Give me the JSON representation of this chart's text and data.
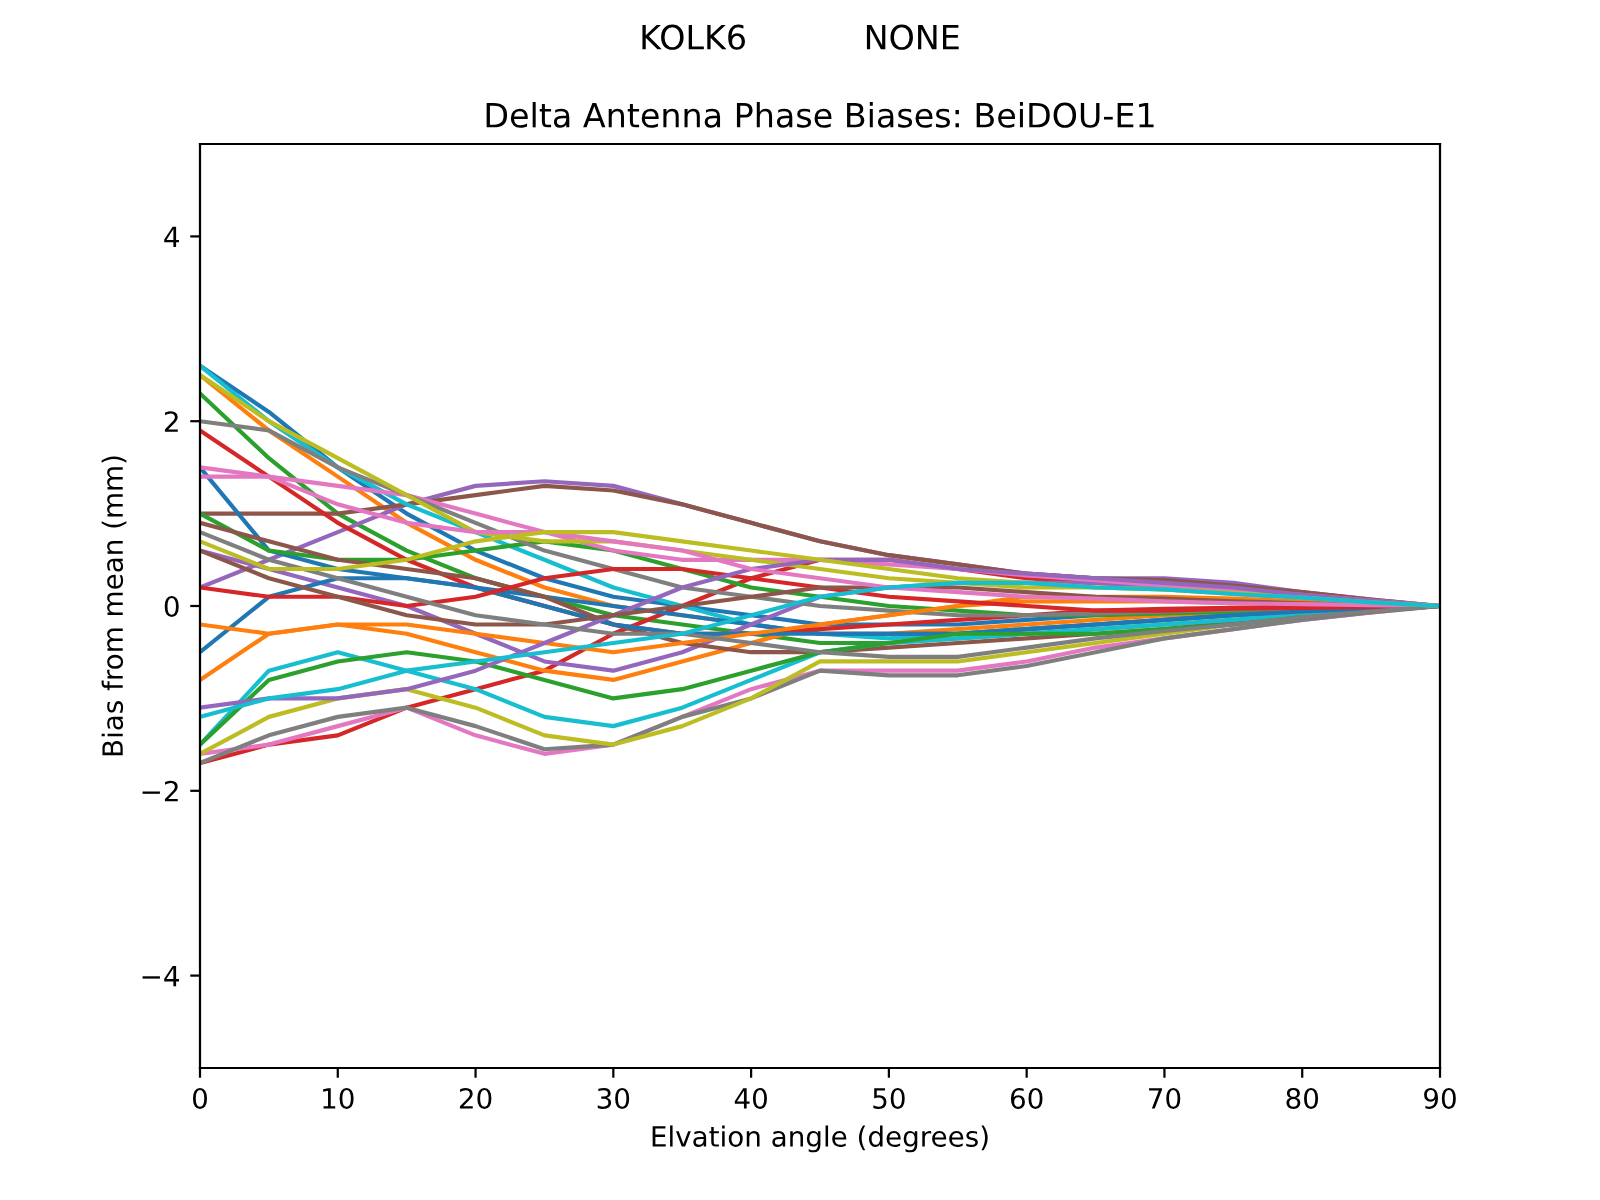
{
  "chart_data": {
    "type": "line",
    "title": "Delta Antenna Phase Biases: BeiDOU-E1",
    "subtitle": "KOLK6           NONE",
    "xlabel": "Elvation angle (degrees)",
    "ylabel": "Bias from mean (mm)",
    "x": [
      0,
      5,
      10,
      15,
      20,
      25,
      30,
      35,
      40,
      45,
      50,
      55,
      60,
      65,
      70,
      75,
      80,
      85,
      90
    ],
    "xlim": [
      0,
      90
    ],
    "ylim": [
      -5,
      5
    ],
    "xticks": [
      0,
      10,
      20,
      30,
      40,
      50,
      60,
      70,
      80,
      90
    ],
    "yticks": [
      {
        "value": -4,
        "label": "−4"
      },
      {
        "value": -2,
        "label": "−2"
      },
      0,
      2,
      4
    ],
    "grid": false,
    "legend": false,
    "marker": "none",
    "line_style": "solid",
    "series": [
      {
        "color": "#1f77b4",
        "values": [
          2.6,
          2.1,
          1.5,
          1.0,
          0.6,
          0.3,
          0.1,
          0.0,
          -0.1,
          -0.2,
          -0.2,
          -0.2,
          -0.15,
          -0.1,
          -0.1,
          -0.05,
          -0.05,
          -0.02,
          0
        ]
      },
      {
        "color": "#ff7f0e",
        "values": [
          2.5,
          1.9,
          1.4,
          0.9,
          0.5,
          0.2,
          0.0,
          -0.1,
          -0.2,
          -0.3,
          -0.3,
          -0.25,
          -0.2,
          -0.15,
          -0.1,
          -0.08,
          null,
          null,
          null
        ]
      },
      {
        "color": "#2ca02c",
        "values": [
          2.3,
          1.6,
          1.0,
          0.6,
          0.3,
          0.1,
          -0.1,
          -0.2,
          -0.3,
          -0.4,
          -0.4,
          -0.35,
          -0.3,
          -0.25,
          -0.2,
          -0.15,
          -0.1,
          null,
          null
        ]
      },
      {
        "color": "#d62728",
        "values": [
          -1.7,
          -1.5,
          -1.4,
          -1.1,
          -0.9,
          -0.7,
          -0.3,
          0.0,
          0.3,
          0.5,
          0.5,
          0.4,
          0.3,
          0.25,
          0.2,
          0.15,
          0.1,
          0.05,
          0
        ]
      },
      {
        "color": "#9467bd",
        "values": [
          0.2,
          0.5,
          0.8,
          1.1,
          1.3,
          1.35,
          1.3,
          1.1,
          0.9,
          0.7,
          0.55,
          0.45,
          0.35,
          0.3,
          0.3,
          0.25,
          0.15,
          0.07,
          0
        ]
      },
      {
        "color": "#8c564b",
        "values": [
          1.0,
          1.0,
          1.0,
          1.1,
          1.2,
          1.3,
          1.25,
          1.1,
          0.9,
          0.7,
          0.55,
          0.45,
          0.35,
          0.3,
          0.28,
          0.22,
          0.15,
          0.07,
          0
        ]
      },
      {
        "color": "#e377c2",
        "values": [
          -1.6,
          -1.5,
          -1.3,
          -1.1,
          -1.4,
          -1.6,
          -1.5,
          -1.2,
          -0.9,
          -0.7,
          -0.7,
          -0.7,
          -0.6,
          -0.45,
          -0.35,
          -0.25,
          -0.15,
          -0.07,
          0
        ]
      },
      {
        "color": "#7f7f7f",
        "values": [
          -1.7,
          -1.4,
          -1.2,
          -1.1,
          -1.3,
          -1.55,
          -1.5,
          -1.2,
          -1.0,
          -0.7,
          -0.75,
          -0.75,
          -0.65,
          -0.5,
          -0.35,
          -0.25,
          -0.15,
          -0.07,
          0
        ]
      },
      {
        "color": "#bcbd22",
        "values": [
          -1.6,
          -1.2,
          -1.0,
          -0.9,
          -1.1,
          -1.4,
          -1.5,
          -1.3,
          -1.0,
          -0.6,
          -0.6,
          -0.6,
          -0.5,
          -0.4,
          -0.3,
          -0.2,
          -0.12,
          null,
          null
        ]
      },
      {
        "color": "#17becf",
        "values": [
          2.6,
          2.0,
          1.5,
          1.1,
          0.8,
          0.5,
          0.2,
          0.0,
          -0.2,
          -0.3,
          -0.35,
          -0.3,
          -0.25,
          -0.2,
          -0.15,
          -0.1,
          -0.06,
          -0.03,
          0
        ]
      },
      {
        "color": "#1f77b4",
        "values": [
          1.5,
          0.6,
          0.4,
          0.3,
          0.2,
          0.1,
          0.0,
          -0.1,
          -0.2,
          -0.3,
          -0.3,
          -0.3,
          -0.25,
          -0.2,
          -0.15,
          -0.1,
          -0.05,
          -0.02,
          0
        ]
      },
      {
        "color": "#ff7f0e",
        "values": [
          -0.8,
          -0.3,
          -0.2,
          -0.3,
          -0.5,
          -0.7,
          -0.8,
          -0.6,
          -0.4,
          -0.2,
          -0.1,
          0.0,
          0.05,
          0.05,
          0.05,
          0.03,
          0.02,
          0.01,
          0
        ]
      },
      {
        "color": "#2ca02c",
        "values": [
          1.0,
          0.6,
          0.5,
          0.5,
          0.6,
          0.7,
          0.6,
          0.4,
          0.2,
          0.1,
          0.0,
          -0.05,
          -0.1,
          -0.1,
          -0.08,
          -0.06,
          -0.04,
          null,
          null
        ]
      },
      {
        "color": "#d62728",
        "values": [
          1.9,
          1.4,
          0.9,
          0.5,
          0.2,
          0.0,
          -0.2,
          -0.3,
          -0.3,
          -0.25,
          -0.2,
          -0.15,
          -0.1,
          -0.05,
          -0.03,
          -0.02,
          -0.01,
          0,
          0
        ]
      },
      {
        "color": "#9467bd",
        "values": [
          0.6,
          0.4,
          0.2,
          0.0,
          -0.3,
          -0.6,
          -0.7,
          -0.5,
          -0.2,
          0.1,
          0.2,
          0.25,
          0.25,
          0.25,
          0.2,
          0.15,
          0.1,
          0.05,
          0
        ]
      },
      {
        "color": "#8c564b",
        "values": [
          0.9,
          0.7,
          0.5,
          0.4,
          0.3,
          0.1,
          -0.2,
          -0.4,
          -0.5,
          -0.5,
          -0.45,
          -0.4,
          -0.35,
          -0.3,
          -0.25,
          -0.18,
          -0.12,
          -0.06,
          0
        ]
      },
      {
        "color": "#e377c2",
        "values": [
          1.4,
          1.4,
          1.3,
          1.2,
          1.0,
          0.8,
          0.6,
          0.5,
          0.5,
          0.5,
          0.45,
          0.4,
          0.33,
          0.28,
          0.22,
          0.17,
          0.12,
          0.06,
          0
        ]
      },
      {
        "color": "#7f7f7f",
        "values": [
          2.0,
          1.9,
          1.5,
          1.2,
          0.9,
          0.6,
          0.4,
          0.2,
          0.1,
          0.0,
          -0.05,
          -0.1,
          -0.1,
          -0.08,
          -0.06,
          -0.04,
          -0.03,
          -0.01,
          0
        ]
      },
      {
        "color": "#bcbd22",
        "values": [
          2.5,
          2.0,
          1.6,
          1.2,
          0.8,
          0.7,
          0.7,
          0.6,
          0.5,
          0.4,
          0.3,
          0.25,
          0.2,
          0.2,
          0.18,
          0.14,
          0.1,
          0.05,
          0
        ]
      },
      {
        "color": "#17becf",
        "values": [
          -1.5,
          -0.7,
          -0.5,
          -0.7,
          -0.9,
          -1.2,
          -1.3,
          -1.1,
          -0.8,
          -0.5,
          -0.4,
          -0.35,
          -0.3,
          -0.25,
          -0.2,
          -0.15,
          -0.1,
          -0.05,
          0
        ]
      },
      {
        "color": "#1f77b4",
        "values": [
          -0.5,
          0.1,
          0.3,
          0.3,
          0.2,
          0.0,
          -0.2,
          -0.3,
          -0.3,
          -0.3,
          -0.3,
          -0.3,
          -0.25,
          -0.2,
          -0.15,
          -0.1,
          -0.06,
          -0.03,
          0
        ]
      },
      {
        "color": "#ff7f0e",
        "values": [
          -0.2,
          -0.3,
          -0.2,
          -0.2,
          -0.3,
          -0.4,
          -0.5,
          -0.4,
          -0.3,
          -0.2,
          -0.1,
          0.0,
          0.1,
          0.1,
          0.1,
          0.08,
          0.05,
          0.03,
          0
        ]
      },
      {
        "color": "#2ca02c",
        "values": [
          -1.5,
          -0.8,
          -0.6,
          -0.5,
          -0.6,
          -0.8,
          -1.0,
          -0.9,
          -0.7,
          -0.5,
          -0.4,
          -0.3,
          -0.3,
          -0.3,
          -0.25,
          -0.2,
          -0.12,
          null,
          null
        ]
      },
      {
        "color": "#d62728",
        "values": [
          0.2,
          0.1,
          0.1,
          0.0,
          0.1,
          0.3,
          0.4,
          0.4,
          0.3,
          0.2,
          0.1,
          0.05,
          0.0,
          -0.05,
          -0.05,
          -0.03,
          -0.02,
          -0.01,
          0
        ]
      },
      {
        "color": "#9467bd",
        "values": [
          -1.1,
          -1.0,
          -1.0,
          -0.9,
          -0.7,
          -0.4,
          -0.1,
          0.2,
          0.4,
          0.5,
          0.5,
          0.4,
          0.35,
          0.3,
          0.25,
          0.2,
          0.12,
          0.06,
          0
        ]
      },
      {
        "color": "#8c564b",
        "values": [
          0.6,
          0.3,
          0.1,
          -0.1,
          -0.2,
          -0.2,
          -0.1,
          0.0,
          0.1,
          0.2,
          0.2,
          0.2,
          0.15,
          0.1,
          0.08,
          0.05,
          0.03,
          0.01,
          0
        ]
      },
      {
        "color": "#e377c2",
        "values": [
          1.5,
          1.4,
          1.1,
          0.9,
          0.8,
          0.8,
          0.7,
          0.6,
          0.4,
          0.3,
          0.2,
          0.15,
          0.1,
          0.08,
          0.05,
          0.03,
          0.02,
          0.01,
          0
        ]
      },
      {
        "color": "#7f7f7f",
        "values": [
          0.8,
          0.5,
          0.3,
          0.1,
          -0.1,
          -0.2,
          -0.3,
          -0.3,
          -0.4,
          -0.5,
          -0.55,
          -0.55,
          -0.45,
          -0.35,
          -0.27,
          -0.2,
          -0.12,
          -0.06,
          0
        ]
      },
      {
        "color": "#bcbd22",
        "values": [
          0.7,
          0.4,
          0.4,
          0.5,
          0.7,
          0.8,
          0.8,
          0.7,
          0.6,
          0.5,
          0.4,
          0.3,
          0.25,
          0.2,
          0.18,
          0.13,
          0.09,
          0.04,
          0
        ]
      },
      {
        "color": "#17becf",
        "values": [
          -1.2,
          -1.0,
          -0.9,
          -0.7,
          -0.6,
          -0.5,
          -0.4,
          -0.3,
          -0.1,
          0.1,
          0.2,
          0.25,
          0.25,
          0.2,
          0.18,
          0.13,
          0.09,
          0.04,
          0
        ]
      }
    ]
  }
}
